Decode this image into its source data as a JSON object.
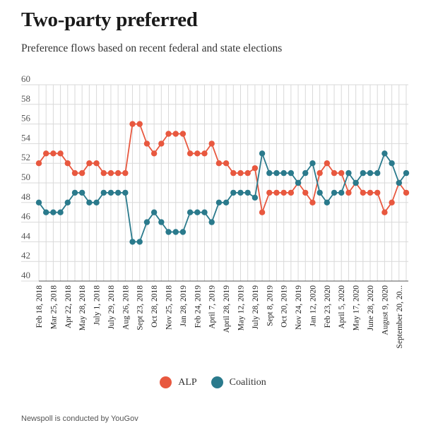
{
  "title": "Two-party preferred",
  "subtitle": "Preference flows based on recent federal and state elections",
  "footnote": "Newspoll is conducted by YouGov",
  "colors": {
    "alp": "#e8583f",
    "coalition": "#2a7a8c",
    "grid": "#d9d9d9",
    "axis": "#555555"
  },
  "legend": {
    "alp": "ALP",
    "coalition": "Coalition"
  },
  "chart_data": {
    "type": "line",
    "title": "Two-party preferred",
    "xlabel": "",
    "ylabel": "",
    "ylim": [
      40,
      60
    ],
    "yticks": [
      40,
      42,
      44,
      46,
      48,
      50,
      52,
      54,
      56,
      58,
      60
    ],
    "grid": true,
    "legend_position": "bottom-center",
    "x_tick_labels": [
      "Feb 18, 2018",
      "Mar 25, 2018",
      "Apr 22, 2018",
      "May 28, 2018",
      "July 1, 2018",
      "July 29, 2018",
      "Aug 26, 2018",
      "Sept 23, 2018",
      "Oct 28, 2018",
      "Nov 25, 2018",
      "Jan 28, 2019",
      "Feb 24, 2019",
      "April 7, 2019",
      "April 28, 2019",
      "May 12, 2019",
      "July 28, 2019",
      "Sept 8, 2019",
      "Oct 20, 2019",
      "Nov 24, 2019",
      "Jan 12, 2020",
      "Feb 23, 2020",
      "April 5, 2020",
      "May 17, 2020",
      "June 28, 2020",
      "August 9, 2020",
      "September 20, 20..."
    ],
    "series": [
      {
        "name": "ALP",
        "values": [
          52,
          53,
          53,
          53,
          52,
          51,
          51,
          52,
          52,
          51,
          51,
          51,
          51,
          56,
          56,
          54,
          53,
          54,
          55,
          55,
          55,
          53,
          53,
          53,
          54,
          52,
          52,
          51,
          51,
          51,
          51.5,
          47,
          49,
          49,
          49,
          49,
          50,
          49,
          48,
          51,
          52,
          51,
          51,
          49,
          50,
          49,
          49,
          49,
          47,
          48,
          50,
          49
        ]
      },
      {
        "name": "Coalition",
        "values": [
          48,
          47,
          47,
          47,
          48,
          49,
          49,
          48,
          48,
          49,
          49,
          49,
          49,
          44,
          44,
          46,
          47,
          46,
          45,
          45,
          45,
          47,
          47,
          47,
          46,
          48,
          48,
          49,
          49,
          49,
          48.5,
          53,
          51,
          51,
          51,
          51,
          50,
          51,
          52,
          49,
          48,
          49,
          49,
          51,
          50,
          51,
          51,
          51,
          53,
          52,
          50,
          51
        ]
      }
    ]
  }
}
